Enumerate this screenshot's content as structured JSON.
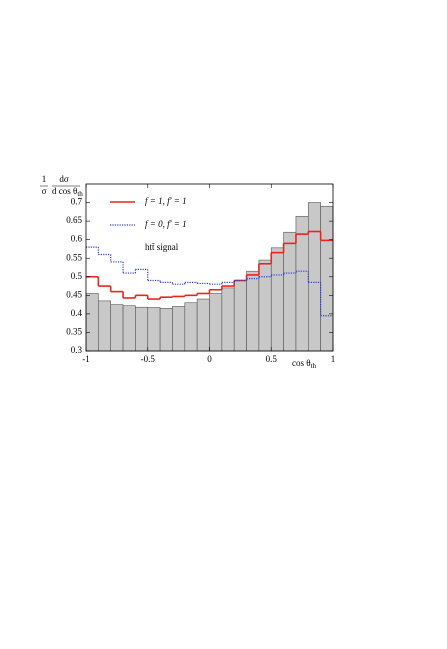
{
  "chart_data": {
    "type": "histogram",
    "y_label": {
      "numerator": [
        "1",
        "dσ"
      ],
      "denominator": [
        "σ",
        "d cos θ"
      ],
      "subscript": "th"
    },
    "x_label": {
      "text": "cos θ",
      "subscript": "th"
    },
    "bins": [
      -1,
      -0.9,
      -0.8,
      -0.7,
      -0.6,
      -0.5,
      -0.4,
      -0.3,
      -0.2,
      -0.1,
      0,
      0.1,
      0.2,
      0.3,
      0.4,
      0.5,
      0.6,
      0.7,
      0.8,
      0.9,
      1
    ],
    "series": [
      {
        "name": "htt̄ signal",
        "color": "#c8c8c8",
        "style": "bar",
        "values": [
          0.455,
          0.435,
          0.425,
          0.422,
          0.418,
          0.417,
          0.415,
          0.42,
          0.43,
          0.44,
          0.455,
          0.47,
          0.49,
          0.515,
          0.545,
          0.578,
          0.62,
          0.663,
          0.7,
          0.69
        ]
      },
      {
        "name": "f = 1,  f′ = 1",
        "color": "#e8251f",
        "style": "solid",
        "values": [
          0.5,
          0.475,
          0.46,
          0.443,
          0.45,
          0.44,
          0.445,
          0.447,
          0.45,
          0.455,
          0.465,
          0.475,
          0.49,
          0.505,
          0.535,
          0.565,
          0.59,
          0.615,
          0.622,
          0.598
        ]
      },
      {
        "name": "f = 0,  f′ = 1",
        "color": "#2a3fd0",
        "style": "dotted",
        "values": [
          0.58,
          0.56,
          0.54,
          0.51,
          0.52,
          0.49,
          0.485,
          0.48,
          0.485,
          0.482,
          0.48,
          0.485,
          0.49,
          0.495,
          0.5,
          0.505,
          0.51,
          0.515,
          0.485,
          0.395
        ]
      }
    ],
    "xlim": [
      -1,
      1
    ],
    "ylim": [
      0.3,
      0.75
    ],
    "xticks": [
      -1,
      -0.5,
      0,
      0.5,
      1
    ],
    "yticks": [
      0.3,
      0.35,
      0.4,
      0.45,
      0.5,
      0.55,
      0.6,
      0.65,
      0.7
    ]
  }
}
